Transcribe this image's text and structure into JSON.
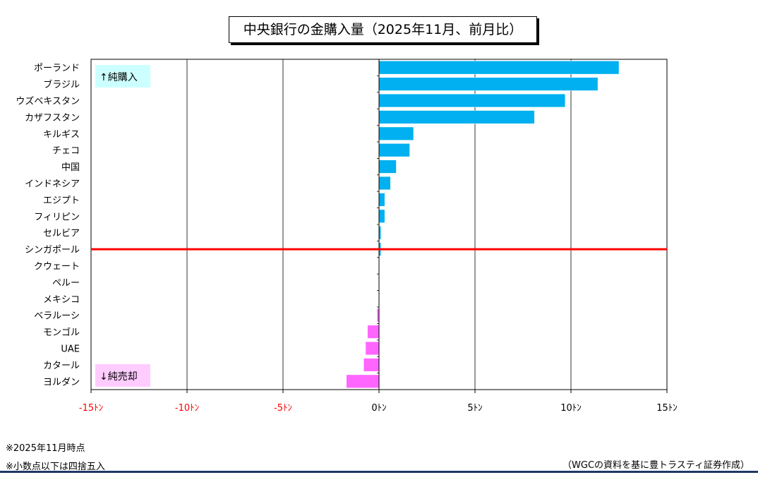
{
  "title": "中央銀行の金購入量（2025年11月、前月比）",
  "legend": {
    "buy_label": "↑純購入",
    "sell_label": "↓純売却"
  },
  "notes": [
    "※2025年11月時点",
    "※小数点以下は四捨五入"
  ],
  "source": "（WGCの資料を基に豊トラスティ証券作成）",
  "colors": {
    "buy": "#00b0f0",
    "sell": "#ff66ff",
    "zero_line": "#ff0000",
    "buy_box": "#ccffff",
    "sell_box": "#ffccff",
    "negative_tick": "#ff0000"
  },
  "chart_data": {
    "type": "bar",
    "orientation": "horizontal",
    "title": "中央銀行の金購入量（2025年11月、前月比）",
    "unit": "トン",
    "xlim": [
      -15,
      15
    ],
    "x_ticks": [
      -15,
      -10,
      -5,
      0,
      5,
      10,
      15
    ],
    "x_tick_labels": [
      "-15ﾄﾝ",
      "-10ﾄﾝ",
      "-5ﾄﾝ",
      "0ﾄﾝ",
      "5ﾄﾝ",
      "10ﾄﾝ",
      "15ﾄﾝ"
    ],
    "grid": true,
    "categories": [
      "ポーランド",
      "ブラジル",
      "ウズベキスタン",
      "カザフスタン",
      "キルギス",
      "チェコ",
      "中国",
      "インドネシア",
      "エジプト",
      "フィリピン",
      "セルビア",
      "シンガポール",
      "クウェート",
      "ペルー",
      "メキシコ",
      "ベラルーシ",
      "モンゴル",
      "UAE",
      "カタール",
      "ヨルダン"
    ],
    "values": [
      12.5,
      11.4,
      9.7,
      8.1,
      1.8,
      1.6,
      0.9,
      0.6,
      0.3,
      0.3,
      0.1,
      0.1,
      0,
      0,
      0,
      -0.1,
      -0.6,
      -0.7,
      -0.8,
      -1.7
    ]
  }
}
